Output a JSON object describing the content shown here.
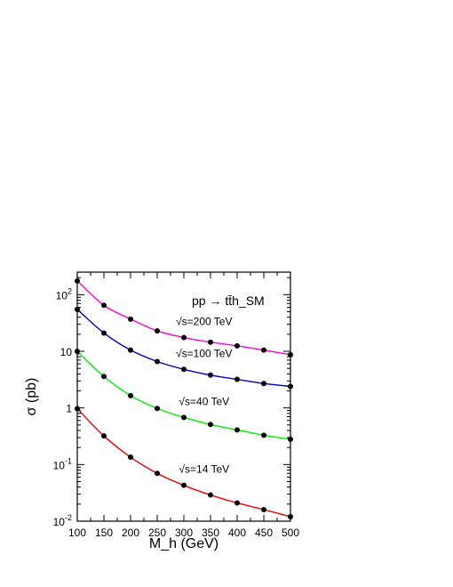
{
  "chart_data": {
    "type": "line",
    "title": "",
    "xlabel": "M_h (GeV)",
    "ylabel": "σ (pb)",
    "process_label": "pp → tt̄h_SM",
    "xlim": [
      100,
      500
    ],
    "ylim": [
      0.01,
      250
    ],
    "yscale": "log",
    "x_ticks": [
      100,
      150,
      200,
      250,
      300,
      350,
      400,
      450,
      500
    ],
    "y_ticks": [
      {
        "value": 0.01,
        "base": "10",
        "exp": "-2"
      },
      {
        "value": 0.1,
        "base": "10",
        "exp": "-1"
      },
      {
        "value": 1,
        "base": "1",
        "exp": ""
      },
      {
        "value": 10,
        "base": "10",
        "exp": ""
      },
      {
        "value": 100,
        "base": "10",
        "exp": "2"
      }
    ],
    "grid": false,
    "x": [
      100,
      150,
      200,
      250,
      300,
      350,
      400,
      450,
      500
    ],
    "series": [
      {
        "name": "√s=200 TeV",
        "color": "#ff00cc",
        "values": [
          175,
          65,
          37,
          23,
          17.5,
          14.5,
          12.5,
          10.5,
          8.7
        ]
      },
      {
        "name": "√s=100 TeV",
        "color": "#0000cc",
        "values": [
          55,
          21,
          10.5,
          6.6,
          4.8,
          3.8,
          3.2,
          2.7,
          2.4
        ]
      },
      {
        "name": "√s=40 TeV",
        "color": "#00ee00",
        "values": [
          10,
          3.6,
          1.65,
          0.98,
          0.68,
          0.51,
          0.41,
          0.33,
          0.28
        ]
      },
      {
        "name": "√s=14 TeV",
        "color": "#ee0000",
        "values": [
          0.97,
          0.32,
          0.135,
          0.07,
          0.043,
          0.029,
          0.021,
          0.016,
          0.012
        ]
      }
    ],
    "annotations": [
      {
        "text": "√s=200 TeV",
        "series": 0
      },
      {
        "text": "√s=100 TeV",
        "series": 1
      },
      {
        "text": "√s=40 TeV",
        "series": 2
      },
      {
        "text": "√s=14 TeV",
        "series": 3
      }
    ]
  }
}
